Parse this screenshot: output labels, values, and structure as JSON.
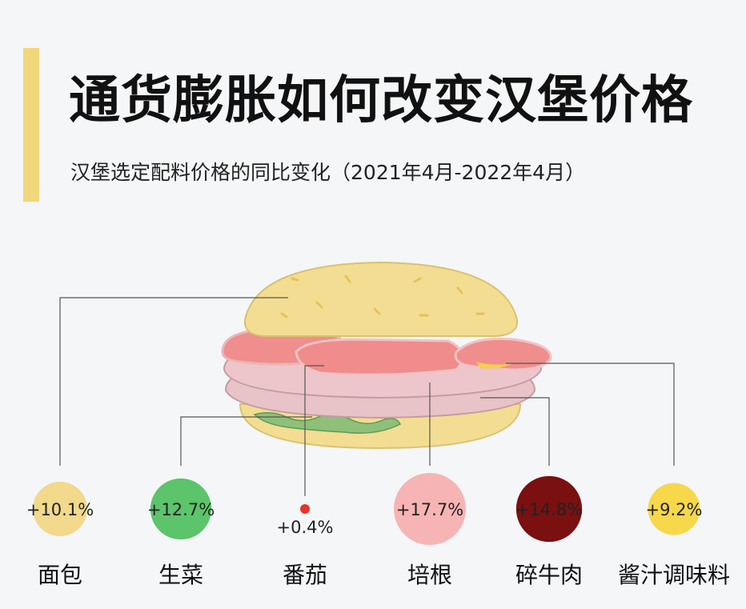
{
  "header": {
    "title": "通货膨胀如何改变汉堡价格",
    "subtitle": "汉堡选定配料价格的同比变化（2021年4月-2022年4月）"
  },
  "chart_data": {
    "type": "bubble",
    "title": "通货膨胀如何改变汉堡价格",
    "subtitle": "汉堡选定配料价格的同比变化（2021年4月-2022年4月）",
    "categories": [
      "面包",
      "生菜",
      "番茄",
      "培根",
      "碎牛肉",
      "酱汁调味料"
    ],
    "values": [
      10.1,
      12.7,
      0.4,
      17.7,
      14.8,
      9.2
    ],
    "value_labels": [
      "+10.1%",
      "+12.7%",
      "+0.4%",
      "+17.7%",
      "+14.8%",
      "+9.2%"
    ],
    "colors": [
      "#f2d98c",
      "#5cc46a",
      "#e8322c",
      "#f7b4b4",
      "#7a1010",
      "#f7d84a"
    ],
    "label_colors": [
      "#222222",
      "#222222",
      "#222222",
      "#222222",
      "#ffffff",
      "#222222"
    ]
  }
}
